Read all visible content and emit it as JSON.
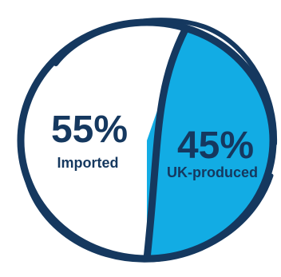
{
  "chart_data": {
    "type": "pie",
    "title": "",
    "slices": [
      {
        "label": "Imported",
        "value": 55,
        "display": "55%",
        "color": "#ffffff"
      },
      {
        "label": "UK-produced",
        "value": 45,
        "display": "45%",
        "color": "#12ace4"
      }
    ],
    "outline_color": "#15385f",
    "text_color": "#15385f",
    "legend": "none",
    "style": "hand-drawn outline"
  }
}
